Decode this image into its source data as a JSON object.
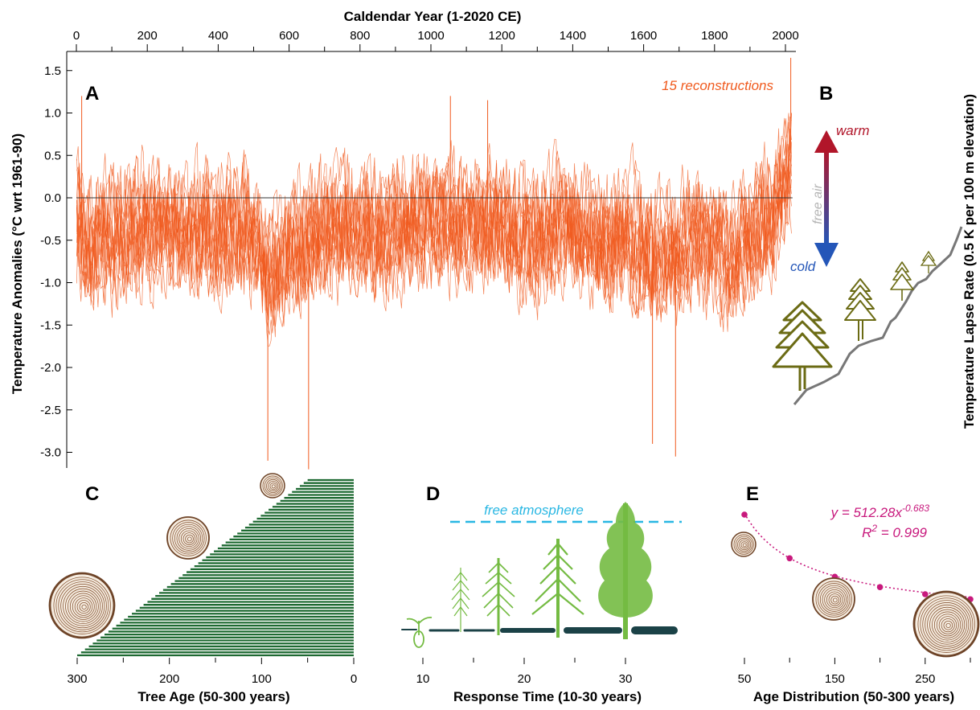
{
  "chart_data": [
    {
      "panel": "A",
      "type": "line",
      "title": "Caldendar Year (1-2020 CE)",
      "xlabel": "Caldendar Year (1-2020 CE)",
      "ylabel": "Temperature Anomalies (°C wrt 1961-90)",
      "xlim": [
        0,
        2020
      ],
      "ylim": [
        -3.2,
        1.7
      ],
      "xticks": [
        0,
        200,
        400,
        600,
        800,
        1000,
        1200,
        1400,
        1600,
        1800,
        2000
      ],
      "yticks": [
        1.5,
        1.0,
        0.5,
        0.0,
        -0.5,
        -1.0,
        -1.5,
        -2.0,
        -2.5,
        -3.0
      ],
      "ytick_labels": [
        "1.5",
        "1.0",
        "0.5",
        "0.0",
        "-0.5",
        "-1.0",
        "-1.5",
        "-2.0",
        "-2.5",
        "-3.0"
      ],
      "annotation": "15 reconstructions",
      "n_series": 15,
      "baseline": 0.0,
      "color": "#f05a1e",
      "grid": false,
      "notable_extremes": [
        {
          "x": 15,
          "y": 1.2
        },
        {
          "x": 540,
          "y": -3.1
        },
        {
          "x": 655,
          "y": -3.2
        },
        {
          "x": 1055,
          "y": 1.2
        },
        {
          "x": 1160,
          "y": 1.15
        },
        {
          "x": 1625,
          "y": -2.9
        },
        {
          "x": 1690,
          "y": -3.05
        },
        {
          "x": 2015,
          "y": 1.65
        }
      ],
      "anchors": [
        [
          0,
          -0.2
        ],
        [
          40,
          -0.6
        ],
        [
          80,
          -0.3
        ],
        [
          120,
          -0.4
        ],
        [
          160,
          -0.3
        ],
        [
          200,
          -0.3
        ],
        [
          240,
          -0.2
        ],
        [
          280,
          -0.3
        ],
        [
          320,
          -0.5
        ],
        [
          360,
          -0.3
        ],
        [
          400,
          -0.4
        ],
        [
          440,
          -0.3
        ],
        [
          480,
          -0.35
        ],
        [
          520,
          -0.5
        ],
        [
          540,
          -0.9
        ],
        [
          560,
          -0.7
        ],
        [
          600,
          -0.6
        ],
        [
          640,
          -0.5
        ],
        [
          680,
          -0.4
        ],
        [
          720,
          -0.35
        ],
        [
          760,
          -0.3
        ],
        [
          800,
          -0.3
        ],
        [
          840,
          -0.35
        ],
        [
          880,
          -0.3
        ],
        [
          920,
          -0.25
        ],
        [
          960,
          -0.2
        ],
        [
          1000,
          -0.2
        ],
        [
          1040,
          -0.15
        ],
        [
          1080,
          -0.2
        ],
        [
          1120,
          -0.25
        ],
        [
          1160,
          -0.2
        ],
        [
          1200,
          -0.3
        ],
        [
          1240,
          -0.35
        ],
        [
          1280,
          -0.4
        ],
        [
          1320,
          -0.35
        ],
        [
          1360,
          -0.3
        ],
        [
          1400,
          -0.3
        ],
        [
          1440,
          -0.4
        ],
        [
          1480,
          -0.5
        ],
        [
          1520,
          -0.45
        ],
        [
          1560,
          -0.4
        ],
        [
          1600,
          -0.55
        ],
        [
          1640,
          -0.65
        ],
        [
          1680,
          -0.6
        ],
        [
          1720,
          -0.5
        ],
        [
          1760,
          -0.45
        ],
        [
          1800,
          -0.55
        ],
        [
          1840,
          -0.6
        ],
        [
          1880,
          -0.45
        ],
        [
          1920,
          -0.3
        ],
        [
          1960,
          -0.15
        ],
        [
          1990,
          0.15
        ],
        [
          2020,
          0.6
        ]
      ]
    },
    {
      "panel": "B",
      "type": "diagram",
      "ylabel": "Temperature Lapse Rate (0.5 K per 100 m elevation)",
      "labels": {
        "warm": "warm",
        "cold": "cold",
        "free_air": "free air"
      },
      "colors": {
        "warm": "#b1162a",
        "cold": "#2456b8",
        "free_air": "#b4b4b4",
        "tree": "#6b6b14",
        "slope": "#777777"
      }
    },
    {
      "panel": "C",
      "type": "bar",
      "xlabel": "Tree Age (50-300 years)",
      "xlim": [
        300,
        0
      ],
      "xticks": [
        300,
        200,
        100,
        0
      ],
      "xtick_labels": [
        "300",
        "200",
        "100",
        "0"
      ],
      "minor_xticks": [
        250,
        150,
        50
      ],
      "n_bars": 60,
      "bar_min_age": 50,
      "bar_max_age": 300,
      "color": "#1e6a32"
    },
    {
      "panel": "D",
      "type": "diagram",
      "xlabel": "Response Time (10-30 years)",
      "xticks": [
        10,
        20,
        30
      ],
      "xtick_labels": [
        "10",
        "20",
        "30"
      ],
      "minor_xticks": [
        15,
        25
      ],
      "annotation": "free atmosphere",
      "colors": {
        "dashed": "#29b7e3",
        "tree": "#74bb42",
        "ground": "#1b4247"
      }
    },
    {
      "panel": "E",
      "type": "scatter",
      "xlabel": "Age Distribution (50-300 years)",
      "xticks": [
        50,
        150,
        250
      ],
      "xtick_labels": [
        "50",
        "150",
        "250"
      ],
      "minor_xticks": [
        100,
        200,
        300
      ],
      "x": [
        50,
        100,
        150,
        200,
        250,
        300
      ],
      "y": [
        35.0,
        22.0,
        16.5,
        13.4,
        11.3,
        9.8
      ],
      "equation": "y = 512.28x",
      "equation_exponent": "-0.683",
      "r2_label": "R",
      "r2_sup": "2",
      "r2_value": " = 0.999",
      "color": "#c8197d"
    }
  ]
}
